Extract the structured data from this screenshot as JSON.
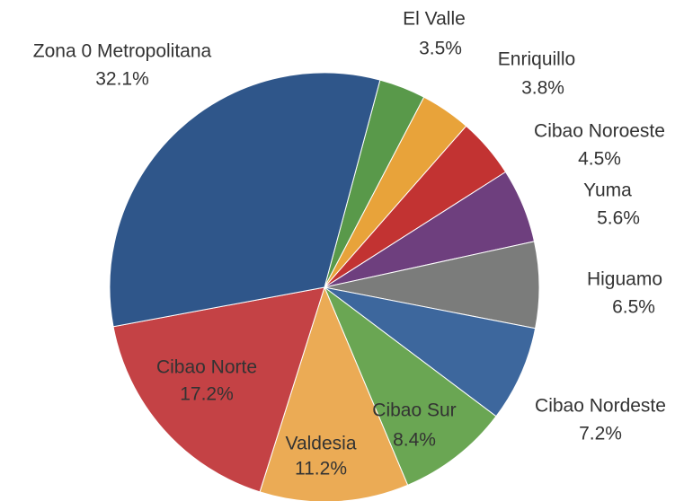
{
  "chart_data": {
    "type": "pie",
    "categories": [
      "El Valle",
      "Enriquillo",
      "Cibao Noroeste",
      "Yuma",
      "Higuamo",
      "Cibao Nordeste",
      "Cibao Sur",
      "Valdesia",
      "Cibao Norte",
      "Zona 0 Metropolitana"
    ],
    "values": [
      3.5,
      3.8,
      4.5,
      5.6,
      6.5,
      7.2,
      8.4,
      11.2,
      17.2,
      32.1
    ],
    "value_labels": [
      "3.5%",
      "3.8%",
      "4.5%",
      "5.6%",
      "6.5%",
      "7.2%",
      "8.4%",
      "11.2%",
      "17.2%",
      "32.1%"
    ],
    "colors": [
      "#59994a",
      "#e8a33a",
      "#c23332",
      "#6e3f7e",
      "#7b7c7b",
      "#3d679d",
      "#6aa653",
      "#ebab55",
      "#c44245",
      "#2f568a"
    ]
  }
}
